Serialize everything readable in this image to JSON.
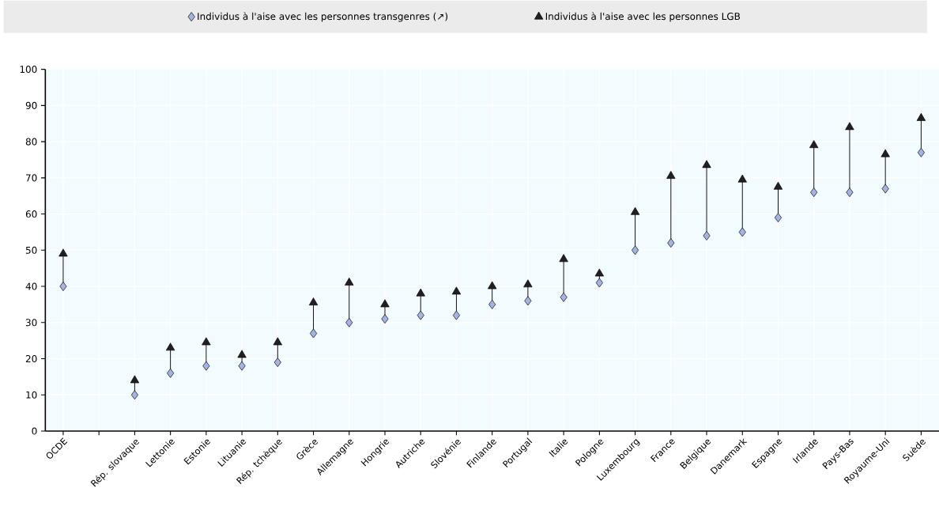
{
  "chart_data": {
    "type": "scatter",
    "categories": [
      "OCDE",
      null,
      "Rép. slovaque",
      "Lettonie",
      "Estonie",
      "Lituanie",
      "Rép. tchèque",
      "Grèce",
      "Allemagne",
      "Hongrie",
      "Autriche",
      "Slovénie",
      "Finlande",
      "Portugal",
      "Italie",
      "Pologne",
      "Luxembourg",
      "France",
      "Belgique",
      "Danemark",
      "Espagne",
      "Irlande",
      "Pays-Bas",
      "Royaume-Uni",
      "Suède"
    ],
    "series": [
      {
        "name": "Individus à l'aise avec les personnes transgenres (↗)",
        "color": "#a4b4e0",
        "marker": "diamond",
        "values": [
          40,
          null,
          10,
          16,
          18,
          18,
          19,
          27,
          30,
          31,
          32,
          32,
          35,
          36,
          37,
          41,
          50,
          52,
          54,
          55,
          59,
          66,
          66,
          67,
          77
        ]
      },
      {
        "name": "Individus à l'aise avec les personnes LGB",
        "color": "#231f20",
        "marker": "triangle",
        "values": [
          49,
          null,
          14,
          23,
          24.5,
          21,
          24.5,
          35.5,
          41,
          35,
          38,
          38.5,
          40,
          40.5,
          47.5,
          43.5,
          60.5,
          70.5,
          73.5,
          69.5,
          67.5,
          79,
          84,
          76.5,
          86.5
        ]
      }
    ],
    "ylim": [
      0,
      100
    ],
    "yticks": [
      0,
      10,
      20,
      30,
      40,
      50,
      60,
      70,
      80,
      90,
      100
    ],
    "grid": true,
    "legend": "top"
  }
}
